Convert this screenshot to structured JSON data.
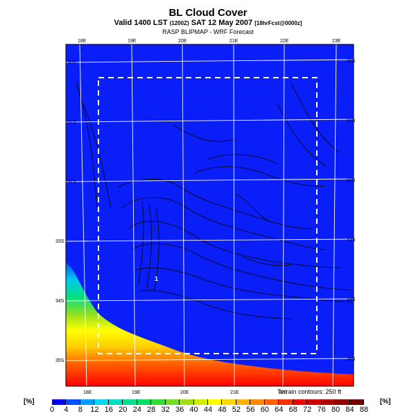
{
  "header": {
    "title": "BL Cloud Cover",
    "valid_main": "Valid 1400 LST",
    "valid_small_1": "(1200Z)",
    "valid_date": "SAT 12 May 2007",
    "valid_small_2": "[18hrFcst@0000z]",
    "model_line": "RASP BLIPMAP - WRF Forecast"
  },
  "map": {
    "lon_labels_top": [
      "18E",
      "19E",
      "20E",
      "21E",
      "22E",
      "23E"
    ],
    "lon_labels_bottom": [
      "18E",
      "19E",
      "20E",
      "21E",
      "22E"
    ],
    "lat_labels_left": [
      "30S",
      "31S",
      "32S",
      "33S",
      "34S",
      "35S"
    ],
    "lat_labels_right": [
      "30S",
      "31S",
      "32S",
      "33S",
      "34S",
      "35S"
    ],
    "point_marker": "1",
    "terrain_note": "Terrain contours: 250 ft"
  },
  "legend": {
    "unit_left": "[%]",
    "unit_right": "[%]",
    "ticks": [
      "0",
      "4",
      "8",
      "12",
      "16",
      "20",
      "24",
      "28",
      "32",
      "36",
      "40",
      "44",
      "48",
      "52",
      "56",
      "60",
      "64",
      "68",
      "72",
      "76",
      "80",
      "84",
      "88"
    ],
    "colors": [
      "#0000f8",
      "#0050ff",
      "#00a0ff",
      "#00d8f0",
      "#00e0c0",
      "#00e090",
      "#00e060",
      "#30e030",
      "#70e020",
      "#a0e010",
      "#d0f000",
      "#ffff00",
      "#ffd800",
      "#ffb000",
      "#ff8800",
      "#ff6000",
      "#ff3000",
      "#f00000",
      "#d00000",
      "#b00000",
      "#900000",
      "#700000"
    ]
  },
  "colors": {
    "background_field": "#0a1ff8",
    "coast_field": "#ff0000",
    "grid": "#ffffff",
    "contour": "#000000"
  }
}
